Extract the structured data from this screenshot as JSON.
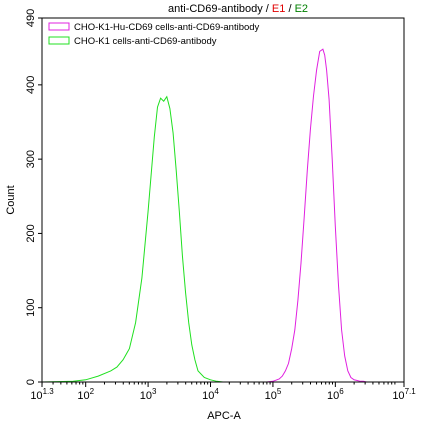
{
  "chart_data": {
    "type": "line",
    "title": {
      "main": "anti-CD69-antibody",
      "sep1": " / ",
      "e1": "E1",
      "sep2": " / ",
      "e2": "E2",
      "main_color": "#000000",
      "e1_color": "#e00000",
      "e2_color": "#008000"
    },
    "xlabel": "APC-A",
    "ylabel": "Count",
    "x_scale": "log",
    "xlim": [
      1.3,
      7.1
    ],
    "ylim": [
      0,
      490
    ],
    "x_ticks": [
      {
        "exp": 1.3,
        "base": "10",
        "sup": "1.3"
      },
      {
        "exp": 2,
        "base": "10",
        "sup": "2"
      },
      {
        "exp": 3,
        "base": "10",
        "sup": "3"
      },
      {
        "exp": 4,
        "base": "10",
        "sup": "4"
      },
      {
        "exp": 5,
        "base": "10",
        "sup": "5"
      },
      {
        "exp": 6,
        "base": "10",
        "sup": "6"
      },
      {
        "exp": 7.1,
        "base": "10",
        "sup": "7.1"
      }
    ],
    "y_ticks": [
      0,
      100,
      200,
      300,
      400,
      490
    ],
    "legend_position": "top-left",
    "series": [
      {
        "name": "CHO-K1-Hu-CD69 cells-anti-CD69-antibody",
        "color": "#e020e0",
        "x": [
          4.9,
          5.0,
          5.1,
          5.15,
          5.2,
          5.25,
          5.3,
          5.35,
          5.4,
          5.45,
          5.5,
          5.55,
          5.6,
          5.65,
          5.7,
          5.75,
          5.8,
          5.83,
          5.86,
          5.9,
          5.95,
          6.0,
          6.05,
          6.1,
          6.15,
          6.2,
          6.25,
          6.3,
          6.35,
          6.4,
          6.45,
          6.5,
          6.6,
          6.7
        ],
        "y": [
          0,
          1,
          4,
          8,
          15,
          25,
          45,
          70,
          110,
          160,
          220,
          285,
          340,
          385,
          420,
          445,
          448,
          440,
          420,
          380,
          300,
          210,
          130,
          70,
          35,
          15,
          6,
          3,
          2,
          1,
          1,
          0,
          0,
          0
        ]
      },
      {
        "name": "CHO-K1 cells-anti-CD69-antibody",
        "color": "#20e020",
        "x": [
          1.3,
          1.8,
          2.0,
          2.2,
          2.4,
          2.5,
          2.6,
          2.7,
          2.8,
          2.9,
          3.0,
          3.05,
          3.1,
          3.15,
          3.2,
          3.25,
          3.3,
          3.35,
          3.4,
          3.45,
          3.5,
          3.55,
          3.6,
          3.65,
          3.7,
          3.75,
          3.8,
          3.9,
          4.0,
          4.1,
          4.2,
          4.3,
          4.5
        ],
        "y": [
          0,
          1,
          3,
          8,
          15,
          20,
          30,
          45,
          80,
          140,
          230,
          280,
          330,
          370,
          382,
          378,
          384,
          368,
          335,
          285,
          230,
          170,
          120,
          80,
          50,
          30,
          15,
          6,
          3,
          1,
          0,
          0,
          0
        ]
      }
    ]
  }
}
